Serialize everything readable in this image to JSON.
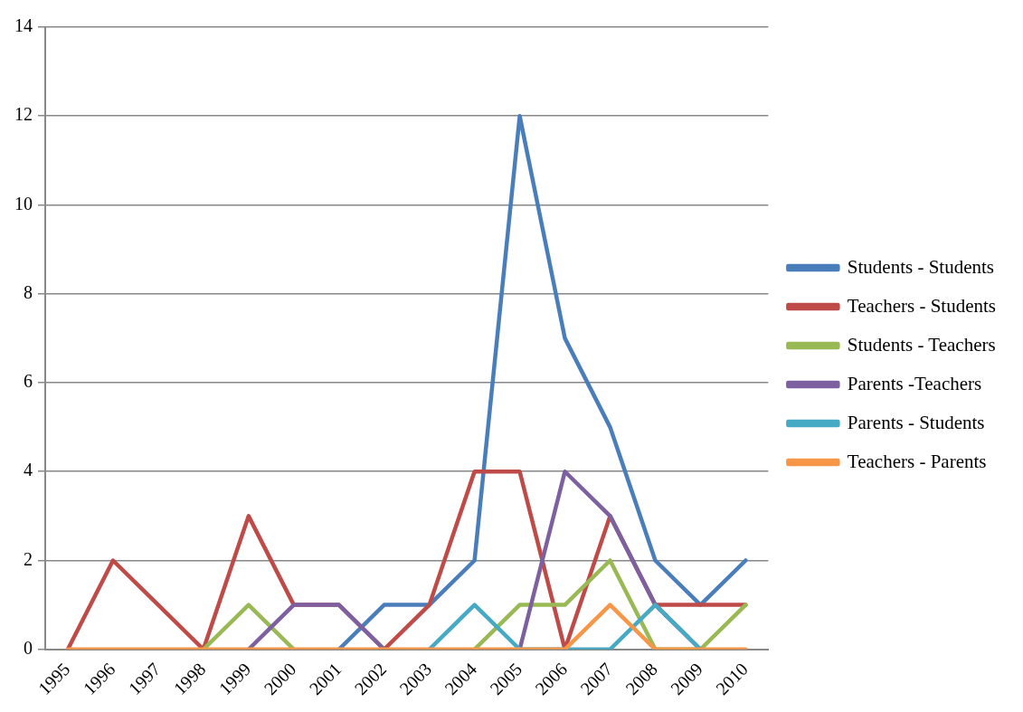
{
  "chart_data": {
    "type": "line",
    "categories": [
      "1995",
      "1996",
      "1997",
      "1998",
      "1999",
      "2000",
      "2001",
      "2002",
      "2003",
      "2004",
      "2005",
      "2006",
      "2007",
      "2008",
      "2009",
      "2010"
    ],
    "series": [
      {
        "name": "Students - Students",
        "color": "#4a7ebb",
        "values": [
          null,
          null,
          null,
          null,
          null,
          null,
          0,
          1,
          1,
          2,
          12,
          7,
          5,
          2,
          1,
          2
        ]
      },
      {
        "name": "Teachers - Students",
        "color": "#be4b48",
        "values": [
          0,
          2,
          1,
          0,
          3,
          1,
          1,
          0,
          1,
          4,
          4,
          0,
          3,
          1,
          1,
          1
        ]
      },
      {
        "name": "Students - Teachers",
        "color": "#98b954",
        "values": [
          null,
          null,
          null,
          0,
          1,
          0,
          null,
          null,
          null,
          0,
          1,
          1,
          2,
          0,
          0,
          1
        ]
      },
      {
        "name": "Parents -Teachers",
        "color": "#7d60a0",
        "values": [
          null,
          null,
          null,
          null,
          0,
          1,
          1,
          0,
          null,
          null,
          0,
          4,
          3,
          1,
          0,
          null
        ]
      },
      {
        "name": "Parents - Students",
        "color": "#46aac5",
        "values": [
          null,
          null,
          null,
          null,
          null,
          null,
          null,
          null,
          0,
          1,
          0,
          0,
          0,
          1,
          0,
          null
        ]
      },
      {
        "name": "Teachers - Parents",
        "color": "#f79646",
        "values": [
          0,
          0,
          0,
          0,
          0,
          0,
          0,
          0,
          0,
          0,
          0,
          0,
          1,
          0,
          0,
          0
        ]
      }
    ],
    "ylim": [
      0,
      14
    ],
    "yticks": [
      0,
      2,
      4,
      6,
      8,
      10,
      12,
      14
    ],
    "grid": "y",
    "legend": "right",
    "marker": "none",
    "line_style": "solid"
  }
}
